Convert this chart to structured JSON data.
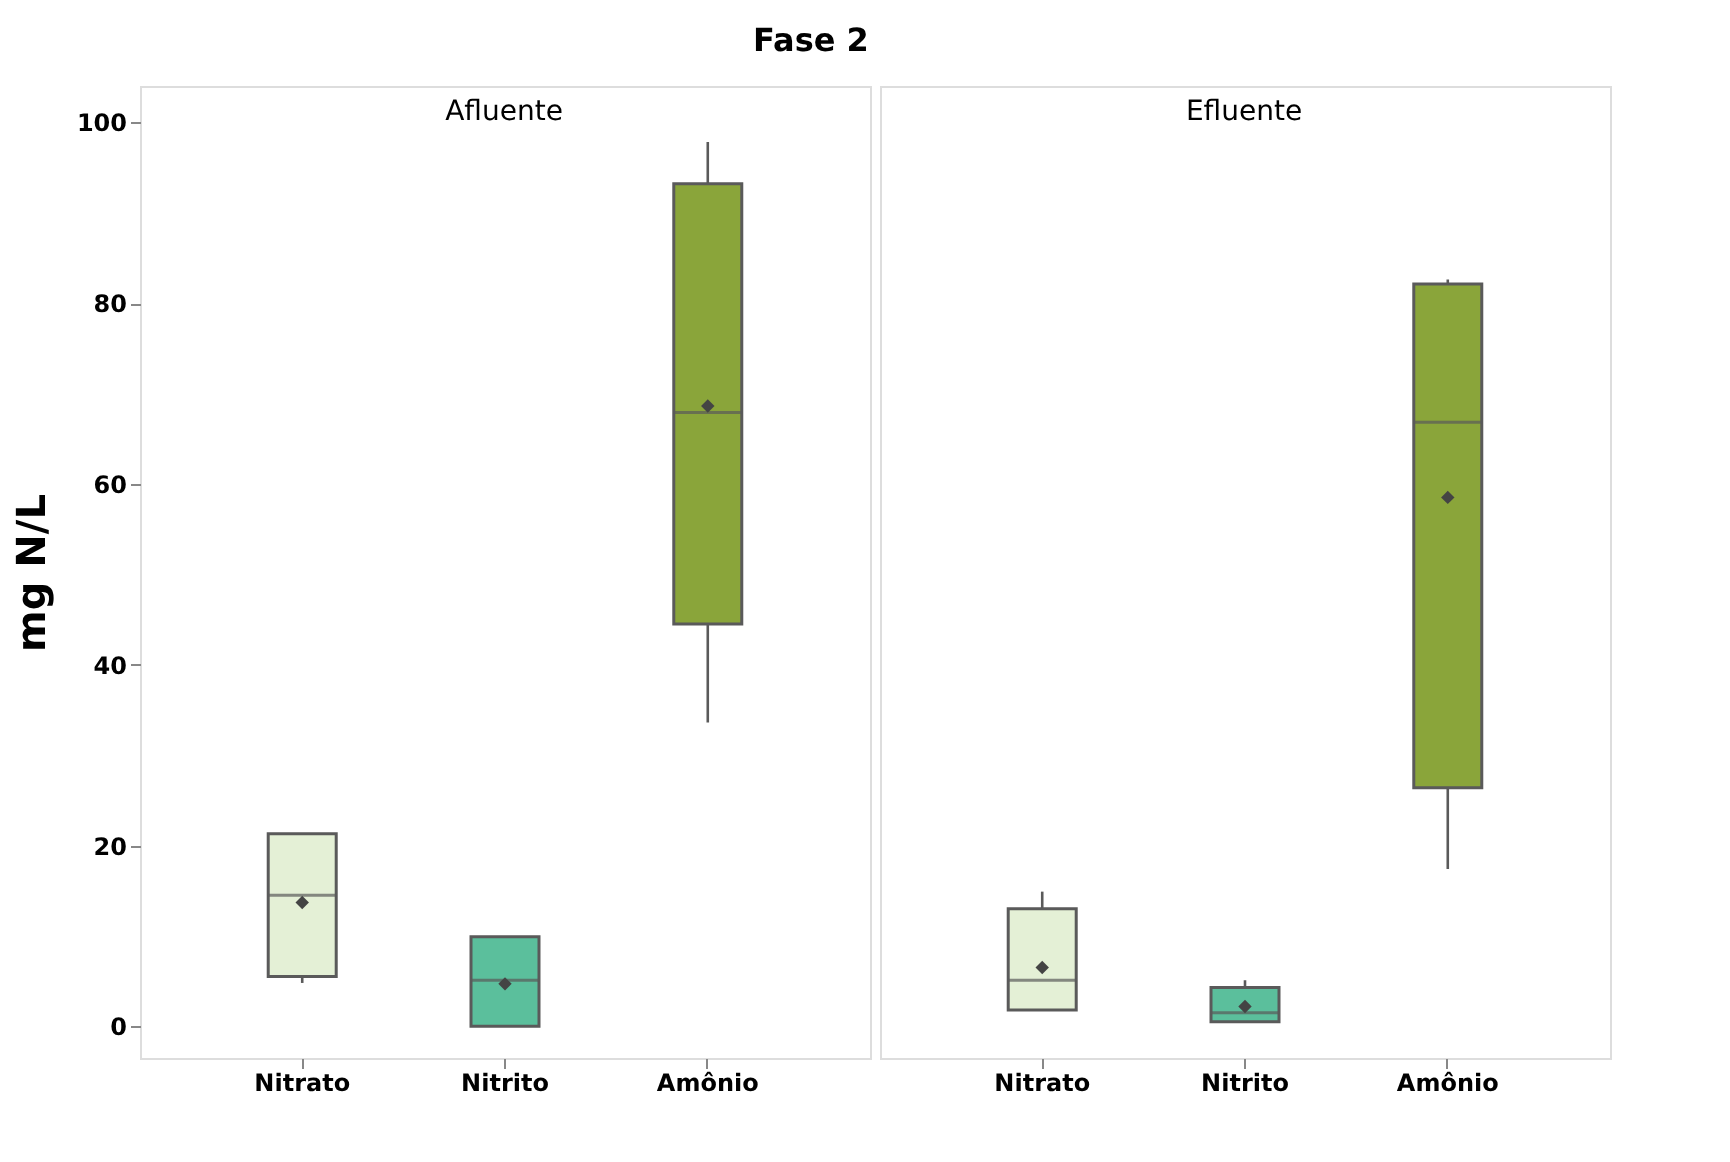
{
  "chart_data": [
    {
      "type": "box",
      "title": "Fase 2",
      "subtitle": "Afluente",
      "ylabel": "mg N/L",
      "categories": [
        "Nitrato",
        "Nitrito",
        "Amônio"
      ],
      "colors": [
        "#e4f0d6",
        "#5bbf9c",
        "#8aa53a"
      ],
      "ylim": [
        -3.5,
        104
      ],
      "yticks": [
        0,
        20,
        40,
        60,
        80,
        100
      ],
      "grid": false,
      "marker": "diamond",
      "boxes": [
        {
          "low": 4.8,
          "q1": 5.5,
          "median": 14.5,
          "q3": 21.3,
          "high": 21.3,
          "mean": 13.7
        },
        {
          "low": 0,
          "q1": 0,
          "median": 5.1,
          "q3": 9.9,
          "high": 9.9,
          "mean": 4.7
        },
        {
          "low": 33.6,
          "q1": 44.5,
          "median": 67.9,
          "q3": 93.2,
          "high": 97.8,
          "mean": 68.6
        }
      ]
    },
    {
      "type": "box",
      "subtitle": "Efluente",
      "categories": [
        "Nitrato",
        "Nitrito",
        "Amônio"
      ],
      "colors": [
        "#e4f0d6",
        "#5bbf9c",
        "#8aa53a"
      ],
      "ylim": [
        -3.5,
        104
      ],
      "yticks": [
        0,
        20,
        40,
        60,
        80,
        100
      ],
      "grid": false,
      "marker": "diamond",
      "tick_labels": "x",
      "boxes": [
        {
          "low": 1.8,
          "q1": 1.8,
          "median": 5.1,
          "q3": 13.0,
          "high": 14.9,
          "mean": 6.5
        },
        {
          "low": 0.5,
          "q1": 0.5,
          "median": 1.5,
          "q3": 4.3,
          "high": 5.1,
          "mean": 2.2
        },
        {
          "low": 17.4,
          "q1": 26.4,
          "median": 66.8,
          "q3": 82.1,
          "high": 82.6,
          "mean": 58.5
        }
      ]
    }
  ]
}
